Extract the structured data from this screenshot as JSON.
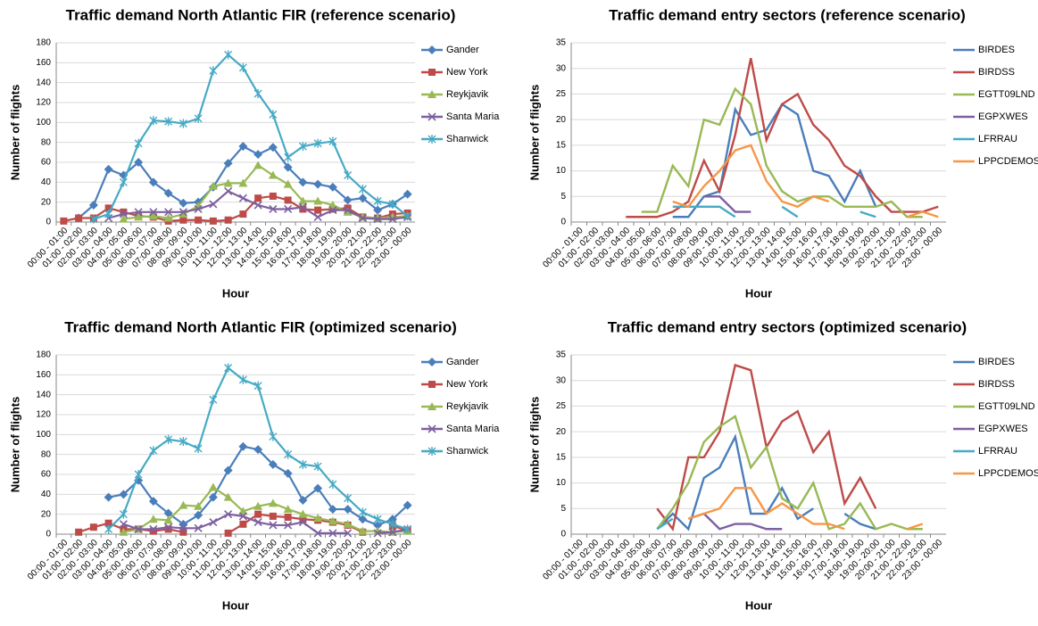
{
  "chart_data": [
    {
      "type": "line",
      "title": "Traffic demand North Atlantic FIR (reference scenario)",
      "x_label": "Hour",
      "y_label": "Number of flights",
      "categories": [
        "00:00 - 01:00",
        "01:00 - 02:00",
        "02:00 - 03:00",
        "03:00 - 04:00",
        "04:00 - 05:00",
        "05:00 - 06:00",
        "06:00 - 07:00",
        "07:00 - 08:00",
        "08:00 - 09:00",
        "09:00 - 10:00",
        "10:00 - 11:00",
        "11:00 - 12:00",
        "12:00 - 13:00",
        "13:00 - 14:00",
        "14:00 - 15:00",
        "15:00 - 16:00",
        "16:00 - 17:00",
        "17:00 - 18:00",
        "18:00 - 19:00",
        "19:00 - 20:00",
        "20:00 - 21:00",
        "21:00 - 22:00",
        "22:00 - 23:00",
        "23:00 - 00:00"
      ],
      "ylim": [
        0,
        180
      ],
      "yticks": [
        0,
        20,
        40,
        60,
        80,
        100,
        120,
        140,
        160,
        180
      ],
      "grid": true,
      "series": [
        {
          "name": "Gander",
          "color": "#4a7ebb",
          "marker": "diamond",
          "values": [
            null,
            4,
            17,
            53,
            47,
            60,
            40,
            29,
            19,
            20,
            35,
            59,
            76,
            68,
            75,
            55,
            40,
            38,
            35,
            22,
            24,
            12,
            18,
            28
          ]
        },
        {
          "name": "New York",
          "color": "#be4b48",
          "marker": "square",
          "values": [
            1,
            4,
            4,
            14,
            10,
            6,
            5,
            1,
            2,
            2,
            1,
            2,
            8,
            24,
            26,
            22,
            13,
            12,
            13,
            14,
            5,
            4,
            8,
            9
          ]
        },
        {
          "name": "Reykjavik",
          "color": "#98b954",
          "marker": "triangle",
          "values": [
            null,
            null,
            null,
            null,
            3,
            5,
            6,
            4,
            8,
            16,
            36,
            39,
            39,
            57,
            47,
            38,
            21,
            21,
            17,
            10,
            5,
            4,
            5,
            6
          ]
        },
        {
          "name": "Santa Maria",
          "color": "#7d60a0",
          "marker": "x",
          "values": [
            null,
            null,
            null,
            4,
            8,
            10,
            10,
            10,
            10,
            13,
            18,
            31,
            24,
            17,
            13,
            13,
            15,
            5,
            12,
            12,
            4,
            3,
            3,
            5
          ]
        },
        {
          "name": "Shanwick",
          "color": "#46aac5",
          "marker": "star",
          "values": [
            null,
            null,
            3,
            8,
            40,
            79,
            102,
            101,
            99,
            104,
            152,
            168,
            155,
            129,
            108,
            65,
            76,
            79,
            81,
            47,
            33,
            21,
            18,
            6
          ]
        }
      ]
    },
    {
      "type": "line",
      "title": "Traffic demand entry sectors (reference scenario)",
      "x_label": "Hour",
      "y_label": "Number of flights",
      "categories": [
        "00:00 - 01:00",
        "01:00 - 02:00",
        "02:00 - 03:00",
        "03:00 - 04:00",
        "04:00 - 05:00",
        "05:00 - 06:00",
        "06:00 - 07:00",
        "07:00 - 08:00",
        "08:00 - 09:00",
        "09:00 - 10:00",
        "10:00 - 11:00",
        "11:00 - 12:00",
        "12:00 - 13:00",
        "13:00 - 14:00",
        "14:00 - 15:00",
        "15:00 - 16:00",
        "16:00 - 17:00",
        "17:00 - 18:00",
        "18:00 - 19:00",
        "19:00 - 20:00",
        "20:00 - 21:00",
        "21:00 - 22:00",
        "22:00 - 23:00",
        "23:00 - 00:00"
      ],
      "ylim": [
        0,
        35
      ],
      "yticks": [
        0,
        5,
        10,
        15,
        20,
        25,
        30,
        35
      ],
      "grid": true,
      "series": [
        {
          "name": "BIRDES",
          "color": "#4a7ebb",
          "values": [
            null,
            null,
            null,
            null,
            null,
            null,
            1,
            1,
            5,
            6,
            22,
            17,
            18,
            23,
            21,
            10,
            9,
            4,
            10,
            3,
            null,
            null,
            null,
            null
          ]
        },
        {
          "name": "BIRDSS",
          "color": "#be4b48",
          "values": [
            null,
            null,
            null,
            1,
            1,
            1,
            2,
            4,
            12,
            6,
            17,
            32,
            16,
            23,
            25,
            19,
            16,
            11,
            9,
            5,
            2,
            2,
            2,
            3
          ]
        },
        {
          "name": "EGTT09LND",
          "color": "#98b954",
          "values": [
            null,
            null,
            null,
            null,
            2,
            2,
            11,
            7,
            20,
            19,
            26,
            23,
            11,
            6,
            4,
            5,
            5,
            3,
            3,
            3,
            4,
            1,
            1,
            null
          ]
        },
        {
          "name": "EGPXWES",
          "color": "#7d60a0",
          "values": [
            null,
            null,
            null,
            null,
            null,
            null,
            null,
            null,
            5,
            5,
            2,
            2,
            null,
            null,
            null,
            null,
            null,
            null,
            null,
            null,
            null,
            null,
            null,
            null
          ]
        },
        {
          "name": "LFRRAU",
          "color": "#46aac5",
          "values": [
            null,
            null,
            null,
            null,
            null,
            null,
            3,
            3,
            3,
            3,
            1,
            null,
            null,
            3,
            1,
            null,
            null,
            null,
            2,
            1,
            null,
            null,
            null,
            null
          ]
        },
        {
          "name": "LPPCDEMOS",
          "color": "#f79646",
          "values": [
            null,
            null,
            null,
            null,
            null,
            null,
            4,
            3,
            7,
            10,
            14,
            15,
            8,
            4,
            3,
            5,
            4,
            null,
            null,
            null,
            null,
            1,
            2,
            1
          ]
        }
      ]
    },
    {
      "type": "line",
      "title": "Traffic demand North Atlantic FIR (optimized scenario)",
      "x_label": "Hour",
      "y_label": "Number of flights",
      "categories": [
        "00:00 - 01:00",
        "01:00 - 02:00",
        "02:00 - 03:00",
        "03:00 - 04:00",
        "04:00 - 05:00",
        "05:00 - 06:00",
        "06:00 - 07:00",
        "07:00 - 08:00",
        "08:00 - 09:00",
        "09:00 - 10:00",
        "10:00 - 11:00",
        "11:00 - 12:00",
        "12:00 - 13:00",
        "13:00 - 14:00",
        "14:00 - 15:00",
        "15:00 - 16:00",
        "16:00 - 17:00",
        "17:00 - 18:00",
        "18:00 - 19:00",
        "19:00 - 20:00",
        "20:00 - 21:00",
        "21:00 - 22:00",
        "22:00 - 23:00",
        "23:00 - 00:00"
      ],
      "ylim": [
        0,
        180
      ],
      "yticks": [
        0,
        20,
        40,
        60,
        80,
        100,
        120,
        140,
        160,
        180
      ],
      "grid": true,
      "series": [
        {
          "name": "Gander",
          "color": "#4a7ebb",
          "marker": "diamond",
          "values": [
            null,
            null,
            null,
            37,
            40,
            54,
            33,
            21,
            10,
            19,
            37,
            64,
            88,
            85,
            70,
            61,
            34,
            46,
            25,
            25,
            15,
            9,
            15,
            29
          ]
        },
        {
          "name": "New York",
          "color": "#be4b48",
          "marker": "square",
          "values": [
            null,
            2,
            7,
            11,
            5,
            5,
            3,
            5,
            2,
            null,
            null,
            1,
            10,
            20,
            18,
            17,
            15,
            14,
            12,
            9,
            2,
            null,
            8,
            4
          ]
        },
        {
          "name": "Reykjavik",
          "color": "#98b954",
          "marker": "triangle",
          "values": [
            null,
            null,
            null,
            null,
            2,
            5,
            15,
            14,
            29,
            28,
            47,
            37,
            23,
            28,
            31,
            25,
            20,
            16,
            13,
            10,
            3,
            3,
            2,
            3
          ]
        },
        {
          "name": "Santa Maria",
          "color": "#7d60a0",
          "marker": "x",
          "values": [
            null,
            null,
            null,
            null,
            10,
            5,
            5,
            7,
            6,
            6,
            12,
            20,
            18,
            12,
            9,
            9,
            12,
            1,
            1,
            1,
            null,
            1,
            2,
            5
          ]
        },
        {
          "name": "Shanwick",
          "color": "#46aac5",
          "marker": "star",
          "values": [
            null,
            null,
            null,
            5,
            20,
            60,
            84,
            95,
            93,
            86,
            135,
            167,
            155,
            149,
            98,
            80,
            70,
            68,
            50,
            36,
            22,
            15,
            10,
            5
          ]
        }
      ]
    },
    {
      "type": "line",
      "title": "Traffic demand entry sectors (optimized scenario)",
      "x_label": "Hour",
      "y_label": "Number of flights",
      "categories": [
        "00:00 - 01:00",
        "01:00 - 02:00",
        "02:00 - 03:00",
        "03:00 - 04:00",
        "04:00 - 05:00",
        "05:00 - 06:00",
        "06:00 - 07:00",
        "07:00 - 08:00",
        "08:00 - 09:00",
        "09:00 - 10:00",
        "10:00 - 11:00",
        "11:00 - 12:00",
        "12:00 - 13:00",
        "13:00 - 14:00",
        "14:00 - 15:00",
        "15:00 - 16:00",
        "16:00 - 17:00",
        "17:00 - 18:00",
        "18:00 - 19:00",
        "19:00 - 20:00",
        "20:00 - 21:00",
        "21:00 - 22:00",
        "22:00 - 23:00",
        "23:00 - 00:00"
      ],
      "ylim": [
        0,
        35
      ],
      "yticks": [
        0,
        5,
        10,
        15,
        20,
        25,
        30,
        35
      ],
      "grid": true,
      "series": [
        {
          "name": "BIRDES",
          "color": "#4a7ebb",
          "values": [
            null,
            null,
            null,
            null,
            null,
            1,
            4,
            1,
            11,
            13,
            19,
            4,
            4,
            9,
            3,
            5,
            null,
            4,
            2,
            1,
            null,
            null,
            null,
            null
          ]
        },
        {
          "name": "BIRDSS",
          "color": "#be4b48",
          "values": [
            null,
            null,
            null,
            null,
            null,
            5,
            1,
            15,
            15,
            20,
            33,
            32,
            17,
            22,
            24,
            16,
            20,
            6,
            11,
            5,
            null,
            null,
            null,
            null
          ]
        },
        {
          "name": "EGTT09LND",
          "color": "#98b954",
          "values": [
            null,
            null,
            null,
            null,
            null,
            1,
            5,
            10,
            18,
            21,
            23,
            13,
            17,
            7,
            5,
            10,
            1,
            2,
            6,
            1,
            2,
            1,
            1,
            null
          ]
        },
        {
          "name": "EGPXWES",
          "color": "#7d60a0",
          "values": [
            null,
            null,
            null,
            null,
            null,
            null,
            null,
            3,
            4,
            1,
            2,
            2,
            1,
            1,
            null,
            null,
            null,
            null,
            null,
            null,
            null,
            null,
            null,
            null
          ]
        },
        {
          "name": "LFRRAU",
          "color": "#46aac5",
          "values": [
            null,
            null,
            null,
            null,
            null,
            1,
            3,
            null,
            null,
            null,
            null,
            null,
            null,
            null,
            null,
            null,
            null,
            null,
            null,
            null,
            null,
            null,
            null,
            null
          ]
        },
        {
          "name": "LPPCDEMOS",
          "color": "#f79646",
          "values": [
            null,
            null,
            null,
            null,
            null,
            null,
            null,
            3,
            4,
            5,
            9,
            9,
            4,
            6,
            4,
            2,
            2,
            1,
            null,
            null,
            null,
            1,
            2,
            null
          ]
        }
      ]
    }
  ]
}
